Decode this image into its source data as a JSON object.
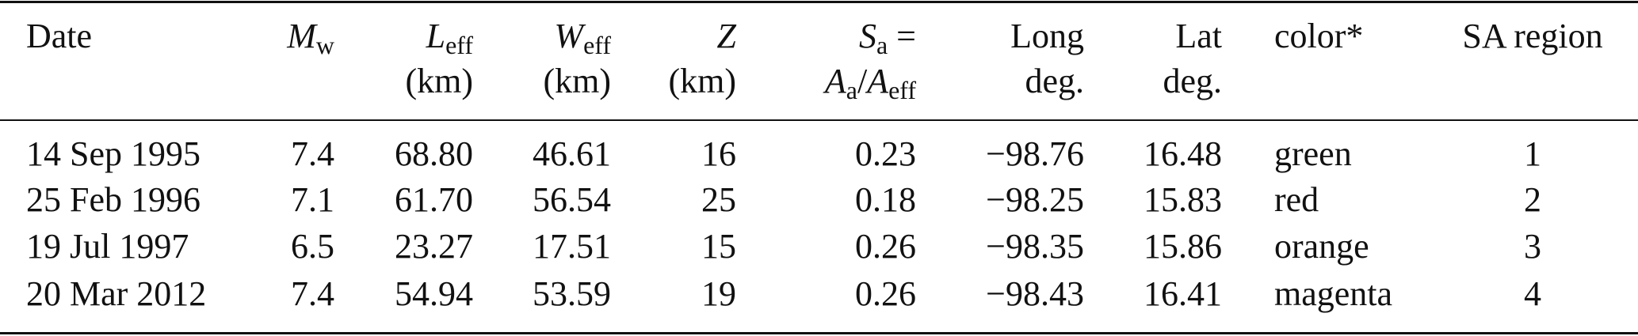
{
  "table": {
    "columns": [
      {
        "lines": [
          [
            {
              "text": "Date"
            }
          ]
        ]
      },
      {
        "lines": [
          [
            {
              "text": "M",
              "style": "italic"
            },
            {
              "text": "w",
              "style": "sub"
            }
          ]
        ]
      },
      {
        "lines": [
          [
            {
              "text": "L",
              "style": "italic"
            },
            {
              "text": "eff",
              "style": "sub"
            }
          ],
          [
            {
              "text": "(km)"
            }
          ]
        ]
      },
      {
        "lines": [
          [
            {
              "text": "W",
              "style": "italic"
            },
            {
              "text": "eff",
              "style": "sub"
            }
          ],
          [
            {
              "text": "(km)"
            }
          ]
        ]
      },
      {
        "lines": [
          [
            {
              "text": "Z",
              "style": "italic"
            }
          ],
          [
            {
              "text": "(km)"
            }
          ]
        ]
      },
      {
        "lines": [
          [
            {
              "text": "S",
              "style": "italic"
            },
            {
              "text": "a",
              "style": "sub"
            },
            {
              "text": " ="
            }
          ],
          [
            {
              "text": "A",
              "style": "italic"
            },
            {
              "text": "a",
              "style": "sub"
            },
            {
              "text": "/"
            },
            {
              "text": "A",
              "style": "italic"
            },
            {
              "text": "eff",
              "style": "sub"
            }
          ]
        ]
      },
      {
        "lines": [
          [
            {
              "text": "Long"
            }
          ],
          [
            {
              "text": "deg."
            }
          ]
        ]
      },
      {
        "lines": [
          [
            {
              "text": "Lat"
            }
          ],
          [
            {
              "text": "deg."
            }
          ]
        ]
      },
      {
        "lines": [
          [
            {
              "text": "color*"
            }
          ]
        ]
      },
      {
        "lines": [
          [
            {
              "text": "SA region"
            }
          ]
        ]
      }
    ],
    "rows": [
      [
        "14 Sep 1995",
        "7.4",
        "68.80",
        "46.61",
        "16",
        "0.23",
        "−98.76",
        "16.48",
        "green",
        "1"
      ],
      [
        "25 Feb 1996",
        "7.1",
        "61.70",
        "56.54",
        "25",
        "0.18",
        "−98.25",
        "15.83",
        "red",
        "2"
      ],
      [
        "19 Jul 1997",
        "6.5",
        "23.27",
        "17.51",
        "15",
        "0.26",
        "−98.35",
        "15.86",
        "orange",
        "3"
      ],
      [
        "20 Mar 2012",
        "7.4",
        "54.94",
        "53.59",
        "19",
        "0.26",
        "−98.43",
        "16.41",
        "magenta",
        "4"
      ]
    ]
  }
}
